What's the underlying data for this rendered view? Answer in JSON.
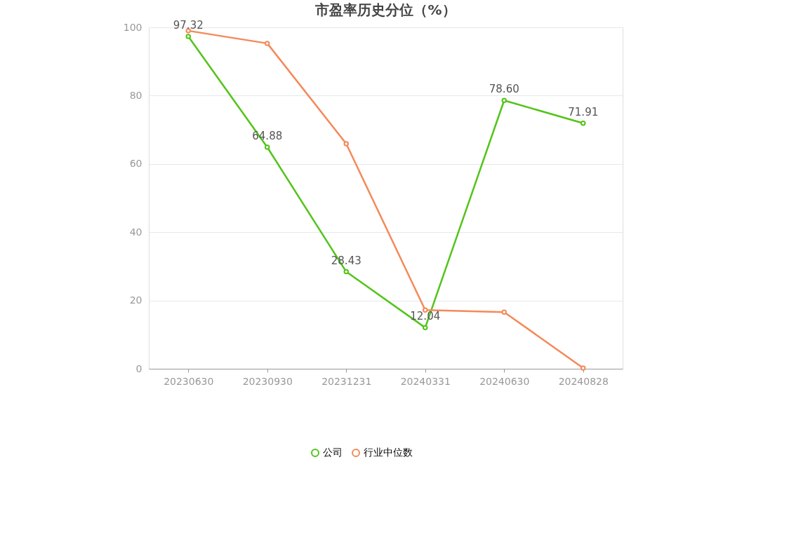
{
  "chart_data": {
    "type": "line",
    "title": "市盈率历史分位（%）",
    "categories": [
      "20230630",
      "20230930",
      "20231231",
      "20240331",
      "20240630",
      "20240828"
    ],
    "series": [
      {
        "name": "公司",
        "color": "#52c41a",
        "values": [
          97.32,
          64.88,
          28.43,
          12.04,
          78.6,
          71.91
        ],
        "value_labels": [
          "97.32",
          "64.88",
          "28.43",
          "12.04",
          "78.60",
          "71.91"
        ]
      },
      {
        "name": "行业中位数",
        "color": "#f5895a",
        "values": [
          99.0,
          95.3,
          65.9,
          17.2,
          16.6,
          0.2
        ]
      }
    ],
    "ylim": [
      0,
      100
    ],
    "yticks": [
      0,
      20,
      40,
      60,
      80,
      100
    ],
    "grid": "y",
    "legend": "bottom",
    "marker": "circle",
    "line_style": "solid"
  }
}
